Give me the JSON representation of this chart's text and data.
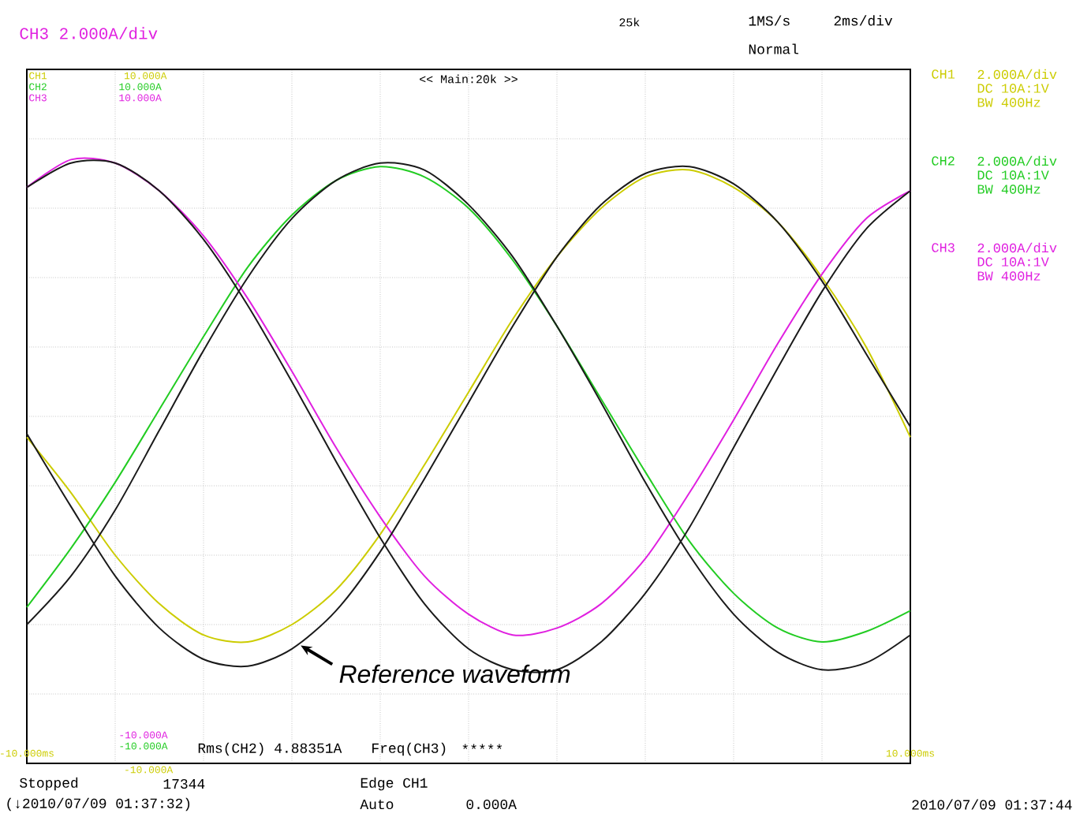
{
  "chart_data": {
    "type": "line",
    "title": "CH3  2.000A/div",
    "x": [
      -10,
      -9,
      -8,
      -7,
      -6,
      -5,
      -4,
      -3,
      -2,
      -1,
      0,
      1,
      2,
      3,
      4,
      5,
      6,
      7,
      8,
      9,
      10
    ],
    "series": [
      {
        "name": "CH1",
        "color": "#cccc00",
        "values": [
          -0.6,
          -2.2,
          -4.0,
          -5.4,
          -6.3,
          -6.5,
          -6.0,
          -5.0,
          -3.4,
          -1.4,
          0.7,
          2.8,
          4.6,
          6.0,
          6.9,
          7.1,
          6.6,
          5.6,
          4.0,
          2.0,
          -0.6
        ]
      },
      {
        "name": "CH2",
        "color": "#22cc22",
        "values": [
          -5.5,
          -3.8,
          -1.9,
          0.2,
          2.3,
          4.3,
          5.8,
          6.8,
          7.2,
          6.9,
          6.0,
          4.5,
          2.6,
          0.5,
          -1.6,
          -3.6,
          -5.1,
          -6.1,
          -6.5,
          -6.2,
          -5.6
        ]
      },
      {
        "name": "CH3",
        "color": "#e020e0",
        "values": [
          6.6,
          7.4,
          7.3,
          6.5,
          5.2,
          3.4,
          1.3,
          -0.9,
          -2.9,
          -4.6,
          -5.7,
          -6.3,
          -6.1,
          -5.4,
          -4.1,
          -2.2,
          -0.1,
          2.1,
          4.1,
          5.7,
          6.5
        ]
      },
      {
        "color": "#1a1a1a",
        "values": [
          6.6,
          7.3,
          7.3,
          6.5,
          5.1,
          3.2,
          1.0,
          -1.3,
          -3.5,
          -5.4,
          -6.7,
          -7.3,
          -7.3,
          -6.5,
          -5.1,
          -3.2,
          -0.9,
          1.4,
          3.6,
          5.4,
          6.5
        ]
      },
      {
        "color": "#1a1a1a",
        "values": [
          -6.0,
          -4.6,
          -2.7,
          -0.4,
          1.9,
          4.0,
          5.7,
          6.8,
          7.3,
          7.1,
          6.1,
          4.6,
          2.6,
          0.4,
          -1.9,
          -4.0,
          -5.7,
          -6.8,
          -7.3,
          -7.1,
          -6.3
        ]
      },
      {
        "color": "#1a1a1a",
        "values": [
          -0.5,
          -2.6,
          -4.6,
          -6.1,
          -7.0,
          -7.2,
          -6.7,
          -5.6,
          -3.9,
          -1.8,
          0.4,
          2.6,
          4.6,
          6.1,
          7.0,
          7.2,
          6.7,
          5.6,
          3.9,
          1.8,
          -0.3
        ]
      }
    ],
    "xlim": [
      -10,
      10
    ],
    "ylim": [
      -10,
      10
    ],
    "xticks": [
      {
        "value": -10,
        "label": "-10.000ms"
      },
      {
        "value": -8,
        "label": null
      },
      {
        "value": -6,
        "label": null
      },
      {
        "value": -4,
        "label": null
      },
      {
        "value": -2,
        "label": null
      },
      {
        "value": 0,
        "label": null
      },
      {
        "value": 2,
        "label": null
      },
      {
        "value": 4,
        "label": null
      },
      {
        "value": 6,
        "label": null
      },
      {
        "value": 8,
        "label": null
      },
      {
        "value": 10,
        "label": "10.000ms"
      }
    ],
    "yticks": [
      {
        "value": -10,
        "label": "-10.000A"
      },
      {
        "value": -8,
        "label": null
      },
      {
        "value": -6,
        "label": null
      },
      {
        "value": -4,
        "label": null
      },
      {
        "value": -2,
        "label": null
      },
      {
        "value": 0,
        "label": null
      },
      {
        "value": 2,
        "label": null
      },
      {
        "value": 4,
        "label": null
      },
      {
        "value": 6,
        "label": null
      },
      {
        "value": 8,
        "label": null
      },
      {
        "value": 10,
        "label": "10.000A"
      }
    ],
    "grid": true,
    "marker": "none",
    "line_style": "solid",
    "annotations": [
      "1MS/s",
      "2ms/div",
      "Normal",
      "25k",
      "<< Main:20k >>",
      "10.000A",
      "10.000A",
      "-10.000A",
      "-10.000A",
      "2.000A/div",
      "DC  10A:1V",
      "BW 400Hz",
      "2.000A/div",
      "DC  10A:1V",
      "BW 400Hz",
      "2.000A/div",
      "DC  10A:1V",
      "BW 400Hz",
      "Rms(CH2)  4.88351A",
      "Freq(CH3)",
      "*",
      "*",
      "*",
      "*",
      "*",
      "Stopped",
      "17344",
      "Edge CH1",
      "(↓2010/07/09 01:37:32)",
      "Auto",
      "0.000A",
      "2010/07/09 01:37:44",
      {
        "text": "Reference waveform",
        "x": -3.8,
        "y": -6.6
      }
    ]
  }
}
